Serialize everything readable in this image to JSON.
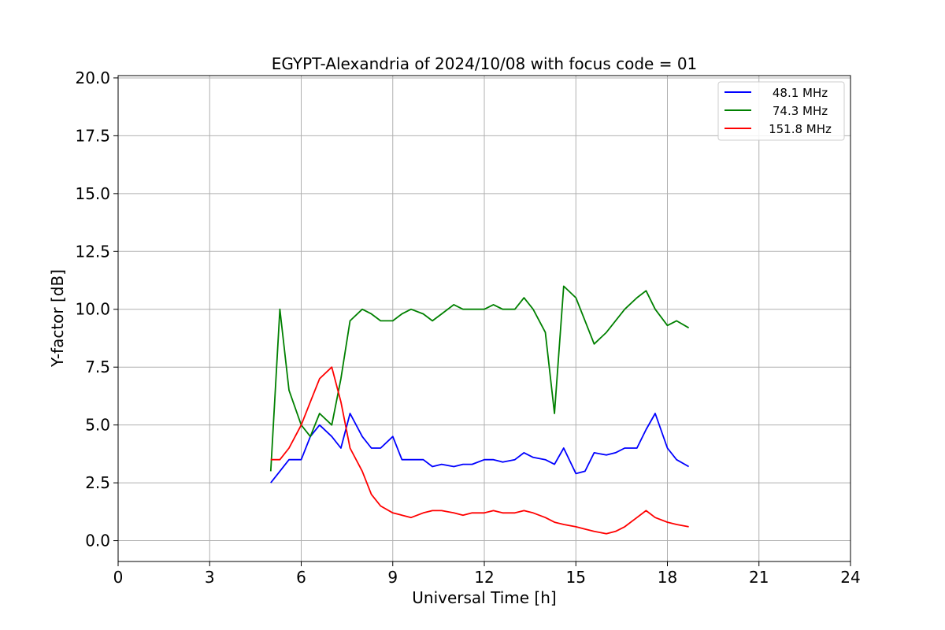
{
  "chart_data": {
    "type": "line",
    "title": "EGYPT-Alexandria of 2024/10/08 with focus code = 01",
    "xlabel": "Universal Time [h]",
    "ylabel": "Y-factor [dB]",
    "xlim": [
      0,
      24
    ],
    "ylim": [
      -0.9,
      20.1
    ],
    "xticks": [
      0,
      3,
      6,
      9,
      12,
      15,
      18,
      21,
      24
    ],
    "xtick_labels": [
      "0",
      "3",
      "6",
      "9",
      "12",
      "15",
      "18",
      "21",
      "24"
    ],
    "yticks": [
      0.0,
      2.5,
      5.0,
      7.5,
      10.0,
      12.5,
      15.0,
      17.5,
      20.0
    ],
    "ytick_labels": [
      "0.0",
      "2.5",
      "5.0",
      "7.5",
      "10.0",
      "12.5",
      "15.0",
      "17.5",
      "20.0"
    ],
    "grid": true,
    "legend_position": "top-right",
    "series": [
      {
        "name": "48.1 MHz",
        "color": "#0000ff",
        "x": [
          5.0,
          5.3,
          5.6,
          6.0,
          6.3,
          6.6,
          7.0,
          7.3,
          7.6,
          8.0,
          8.3,
          8.6,
          9.0,
          9.3,
          9.6,
          10.0,
          10.3,
          10.6,
          11.0,
          11.3,
          11.6,
          12.0,
          12.3,
          12.6,
          13.0,
          13.3,
          13.6,
          14.0,
          14.3,
          14.6,
          15.0,
          15.3,
          15.6,
          16.0,
          16.3,
          16.6,
          17.0,
          17.3,
          17.6,
          18.0,
          18.3,
          18.7
        ],
        "y": [
          2.5,
          3.0,
          3.5,
          3.5,
          4.5,
          5.0,
          4.5,
          4.0,
          5.5,
          4.5,
          4.0,
          4.0,
          4.5,
          3.5,
          3.5,
          3.5,
          3.2,
          3.3,
          3.2,
          3.3,
          3.3,
          3.5,
          3.5,
          3.4,
          3.5,
          3.8,
          3.6,
          3.5,
          3.3,
          4.0,
          2.9,
          3.0,
          3.8,
          3.7,
          3.8,
          4.0,
          4.0,
          4.8,
          5.5,
          4.0,
          3.5,
          3.2
        ]
      },
      {
        "name": "74.3 MHz",
        "color": "#008000",
        "x": [
          5.0,
          5.3,
          5.6,
          6.0,
          6.3,
          6.6,
          7.0,
          7.3,
          7.6,
          8.0,
          8.3,
          8.6,
          9.0,
          9.3,
          9.6,
          10.0,
          10.3,
          10.6,
          11.0,
          11.3,
          11.6,
          12.0,
          12.3,
          12.6,
          13.0,
          13.3,
          13.6,
          14.0,
          14.3,
          14.6,
          15.0,
          15.3,
          15.6,
          16.0,
          16.3,
          16.6,
          17.0,
          17.3,
          17.6,
          18.0,
          18.3,
          18.7
        ],
        "y": [
          3.0,
          10.0,
          6.5,
          5.0,
          4.5,
          5.5,
          5.0,
          7.0,
          9.5,
          10.0,
          9.8,
          9.5,
          9.5,
          9.8,
          10.0,
          9.8,
          9.5,
          9.8,
          10.2,
          10.0,
          10.0,
          10.0,
          10.2,
          10.0,
          10.0,
          10.5,
          10.0,
          9.0,
          5.5,
          11.0,
          10.5,
          9.5,
          8.5,
          9.0,
          9.5,
          10.0,
          10.5,
          10.8,
          10.0,
          9.3,
          9.5,
          9.2
        ]
      },
      {
        "name": "151.8 MHz",
        "color": "#ff0000",
        "x": [
          5.0,
          5.3,
          5.6,
          6.0,
          6.3,
          6.6,
          7.0,
          7.3,
          7.6,
          8.0,
          8.3,
          8.6,
          9.0,
          9.3,
          9.6,
          10.0,
          10.3,
          10.6,
          11.0,
          11.3,
          11.6,
          12.0,
          12.3,
          12.6,
          13.0,
          13.3,
          13.6,
          14.0,
          14.3,
          14.6,
          15.0,
          15.3,
          15.6,
          16.0,
          16.3,
          16.6,
          17.0,
          17.3,
          17.6,
          18.0,
          18.3,
          18.7
        ],
        "y": [
          3.5,
          3.5,
          4.0,
          5.0,
          6.0,
          7.0,
          7.5,
          6.0,
          4.0,
          3.0,
          2.0,
          1.5,
          1.2,
          1.1,
          1.0,
          1.2,
          1.3,
          1.3,
          1.2,
          1.1,
          1.2,
          1.2,
          1.3,
          1.2,
          1.2,
          1.3,
          1.2,
          1.0,
          0.8,
          0.7,
          0.6,
          0.5,
          0.4,
          0.3,
          0.4,
          0.6,
          1.0,
          1.3,
          1.0,
          0.8,
          0.7,
          0.6
        ]
      }
    ]
  }
}
